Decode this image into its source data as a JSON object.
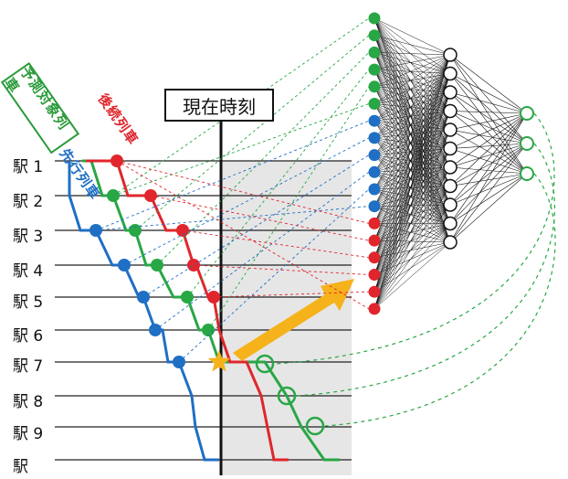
{
  "labels": {
    "current_time": "現在時刻",
    "target_train": "予測対象列車",
    "following_train": "後続列車",
    "preceding_train": "先行列車"
  },
  "stations": [
    "駅 1",
    "駅 2",
    "駅 3",
    "駅 4",
    "駅 5",
    "駅 6",
    "駅 7",
    "駅 8",
    "駅 9",
    "駅"
  ],
  "colors": {
    "blue": "#1f6fc4",
    "green": "#28a745",
    "red": "#e0262c",
    "arrow": "#f5b21b",
    "star": "#f5b21b",
    "gray_region": "#e6e6e6",
    "network_node": "#111111"
  },
  "network": {
    "input_colors": [
      "green",
      "green",
      "green",
      "green",
      "green",
      "green",
      "blue",
      "blue",
      "blue",
      "blue",
      "blue",
      "blue",
      "red",
      "red",
      "red",
      "red",
      "red",
      "red"
    ],
    "hidden_count": 11,
    "output_count": 3
  }
}
